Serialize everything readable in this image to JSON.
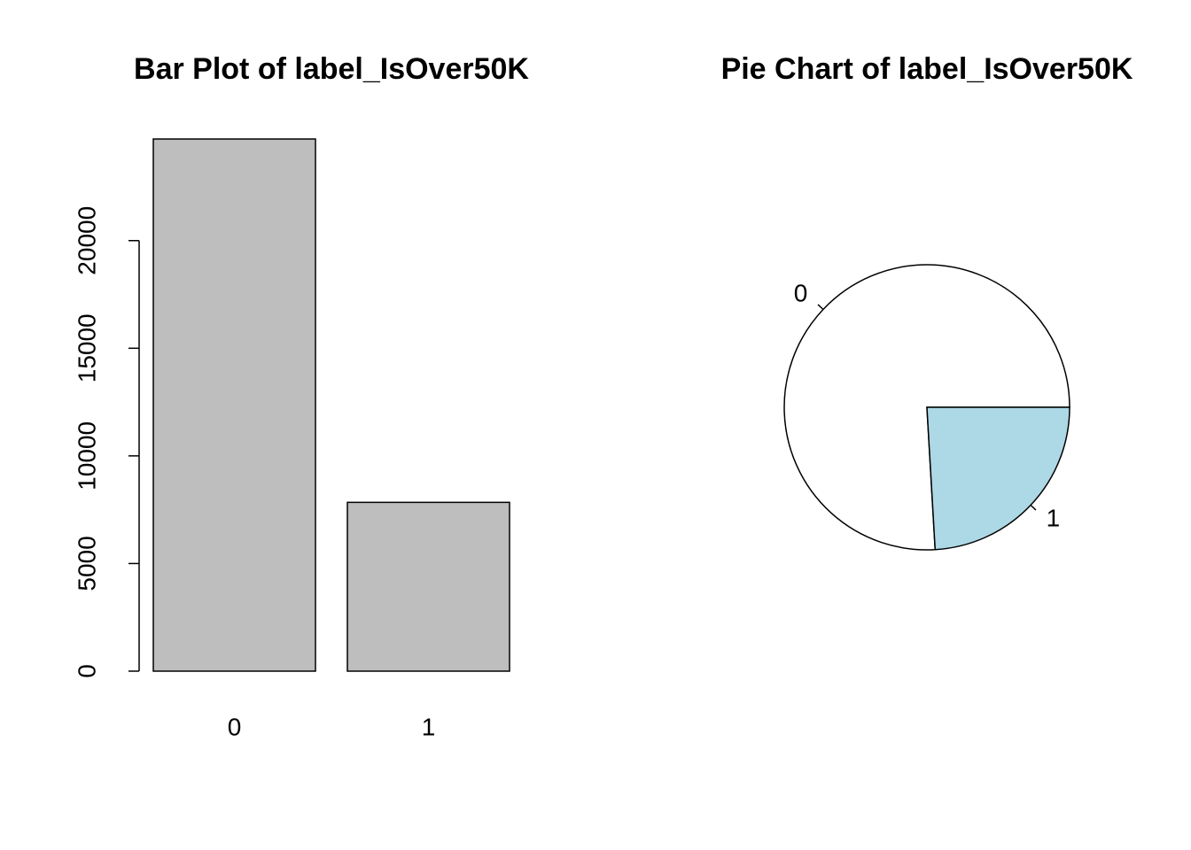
{
  "chart_data": [
    {
      "type": "bar",
      "title": "Bar Plot of label_IsOver50K",
      "categories": [
        "0",
        "1"
      ],
      "values": [
        24720,
        7841
      ],
      "color": "#bebebe",
      "ylim": [
        0,
        24720
      ],
      "yticks": [
        0,
        5000,
        10000,
        15000,
        20000
      ]
    },
    {
      "type": "pie",
      "title": "Pie Chart of label_IsOver50K",
      "categories": [
        "0",
        "1"
      ],
      "values": [
        24720,
        7841
      ],
      "colors": [
        "#ffffff",
        "#add8e6"
      ]
    }
  ]
}
